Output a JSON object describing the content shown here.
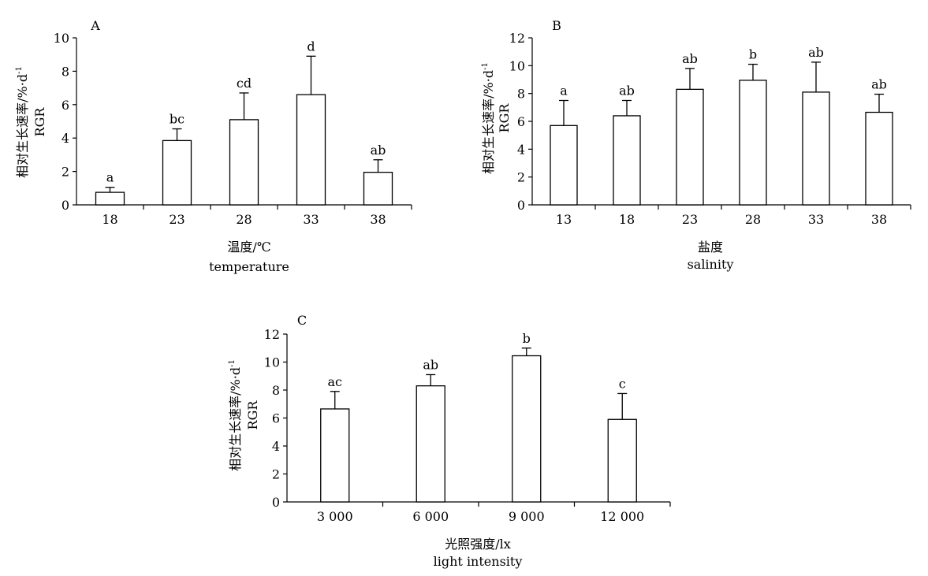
{
  "chart_data": [
    {
      "type": "bar",
      "panel_label": "A",
      "categories": [
        "18",
        "23",
        "28",
        "33",
        "38"
      ],
      "values": [
        0.75,
        3.85,
        5.1,
        6.6,
        1.95
      ],
      "errors": [
        0.3,
        0.7,
        1.6,
        2.3,
        0.75
      ],
      "letters": [
        "a",
        "bc",
        "cd",
        "d",
        "ab"
      ],
      "ylabel_cn": "相对生长速率/%·d",
      "ylabel_sup": "-1",
      "ylabel_en": "RGR",
      "xlabel_cn": "温度/℃",
      "xlabel_en": "temperature",
      "ylim": [
        0,
        10
      ],
      "yticks": [
        0,
        2,
        4,
        6,
        8,
        10
      ],
      "grid": false
    },
    {
      "type": "bar",
      "panel_label": "B",
      "categories": [
        "13",
        "18",
        "23",
        "28",
        "33",
        "38"
      ],
      "values": [
        5.7,
        6.4,
        8.3,
        8.95,
        8.1,
        6.65
      ],
      "errors": [
        1.8,
        1.1,
        1.5,
        1.15,
        2.15,
        1.3
      ],
      "letters": [
        "a",
        "ab",
        "ab",
        "b",
        "ab",
        "ab"
      ],
      "ylabel_cn": "相对生长速率/%·d",
      "ylabel_sup": "-1",
      "ylabel_en": "RGR",
      "xlabel_cn": "盐度",
      "xlabel_en": "salinity",
      "ylim": [
        0,
        12
      ],
      "yticks": [
        0,
        2,
        4,
        6,
        8,
        10,
        12
      ],
      "grid": false
    },
    {
      "type": "bar",
      "panel_label": "C",
      "categories": [
        "3 000",
        "6 000",
        "9 000",
        "12 000"
      ],
      "values": [
        6.65,
        8.3,
        10.45,
        5.9
      ],
      "errors": [
        1.25,
        0.8,
        0.55,
        1.85
      ],
      "letters": [
        "ac",
        "ab",
        "b",
        "c"
      ],
      "ylabel_cn": "相对生长速率/%·d",
      "ylabel_sup": "-1",
      "ylabel_en": "RGR",
      "xlabel_cn": "光照强度/lx",
      "xlabel_en": "light intensity",
      "ylim": [
        0,
        12
      ],
      "yticks": [
        0,
        2,
        4,
        6,
        8,
        10,
        12
      ],
      "grid": false
    }
  ]
}
